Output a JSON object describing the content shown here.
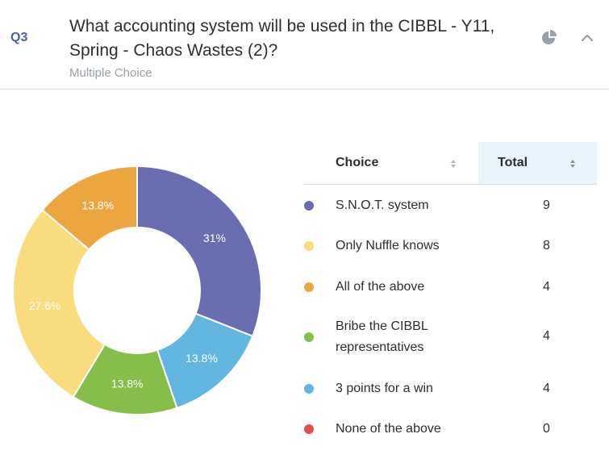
{
  "question": {
    "number": "Q3",
    "title": "What accounting system will be used in the CIBBL - Y11, Spring - Chaos Wastes (2)?",
    "type": "Multiple Choice"
  },
  "icons": {
    "chart_toggle": "pie-chart-icon",
    "collapse": "chevron-up-icon",
    "sort": "sort-icon"
  },
  "table": {
    "headers": {
      "choice": "Choice",
      "total": "Total"
    },
    "rows": [
      {
        "label": "S.N.O.T. system",
        "total": "9",
        "color": "#6a6db0"
      },
      {
        "label": "Only Nuffle knows",
        "total": "8",
        "color": "#f8dc7e"
      },
      {
        "label": "All of the above",
        "total": "4",
        "color": "#eca640"
      },
      {
        "label": "Bribe the CIBBL representatives",
        "total": "4",
        "color": "#86be4c"
      },
      {
        "label": "3 points for a win",
        "total": "4",
        "color": "#62b6e0"
      },
      {
        "label": "None of the above",
        "total": "0",
        "color": "#e0504a"
      }
    ]
  },
  "chart_data": {
    "type": "pie",
    "categories": [
      "S.N.O.T. system",
      "3 points for a win",
      "Bribe the CIBBL representatives",
      "Only Nuffle knows",
      "All of the above"
    ],
    "values": [
      31,
      13.8,
      13.8,
      27.6,
      13.8
    ],
    "labels": [
      "31%",
      "13.8%",
      "13.8%",
      "27.6%",
      "13.8%"
    ],
    "colors": [
      "#6a6db0",
      "#62b6e0",
      "#86be4c",
      "#f8dc7e",
      "#eca640"
    ]
  }
}
